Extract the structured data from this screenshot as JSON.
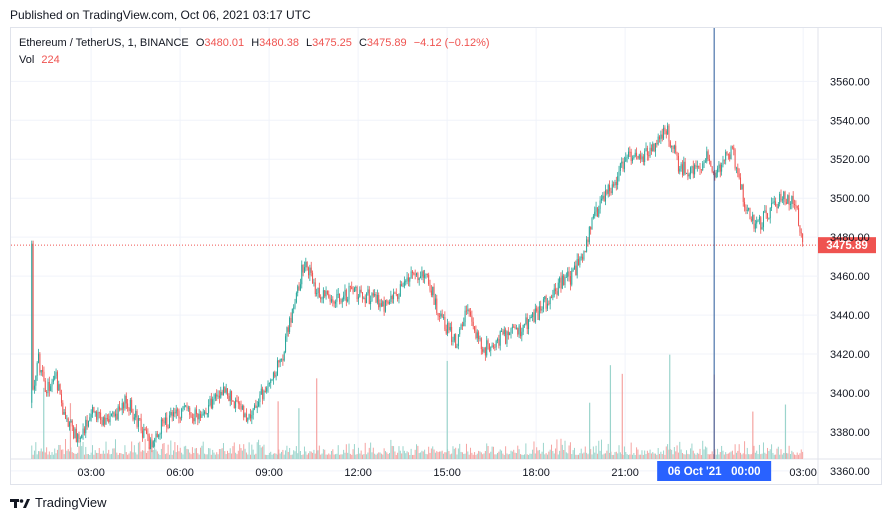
{
  "header": {
    "published": "Published on TradingView.com, Oct 06, 2021 03:17 UTC"
  },
  "legend": {
    "symbol": "Ethereum / TetherUS, 1, BINANCE",
    "o_label": "O",
    "o_value": "3480.01",
    "h_label": "H",
    "h_value": "3480.38",
    "l_label": "L",
    "l_value": "3475.25",
    "c_label": "C",
    "c_value": "3475.89",
    "change": "−4.12 (−0.12%)",
    "vol_label": "Vol",
    "vol_value": "224"
  },
  "price_tag": "3475.89",
  "crosshair_label": "06 Oct '21   00:00",
  "footer": {
    "brand": "TradingView"
  },
  "colors": {
    "up": "#26a69a",
    "down": "#ef5350",
    "up_vol": "#9bd4cc",
    "down_vol": "#f5a3a1",
    "crosshair": "#2a5a9a",
    "price_line": "#ef5350",
    "crosshair_tag": "#2962ff"
  },
  "chart_data": {
    "type": "candlestick",
    "symbol": "ETH/USDT",
    "interval": "1m",
    "y_ticks": [
      3360,
      3380,
      3400,
      3420,
      3440,
      3460,
      3480,
      3500,
      3520,
      3540,
      3560
    ],
    "x_ticks": [
      "03:00",
      "06:00",
      "09:00",
      "12:00",
      "15:00",
      "18:00",
      "21:00",
      "00:00",
      "03:00"
    ],
    "x_tick_hours": [
      3,
      6,
      9,
      12,
      15,
      18,
      21,
      24,
      27
    ],
    "last_price": 3475.89,
    "crosshair_hour": 24,
    "price_path": [
      [
        1.0,
        3395
      ],
      [
        1.2,
        3418
      ],
      [
        1.5,
        3402
      ],
      [
        1.8,
        3410
      ],
      [
        2.1,
        3388
      ],
      [
        2.6,
        3376
      ],
      [
        3.0,
        3392
      ],
      [
        3.6,
        3384
      ],
      [
        4.2,
        3396
      ],
      [
        4.7,
        3382
      ],
      [
        5.0,
        3372
      ],
      [
        5.3,
        3382
      ],
      [
        6.0,
        3391
      ],
      [
        6.6,
        3389
      ],
      [
        7.1,
        3396
      ],
      [
        7.5,
        3403
      ],
      [
        7.9,
        3394
      ],
      [
        8.4,
        3386
      ],
      [
        9.0,
        3408
      ],
      [
        9.4,
        3416
      ],
      [
        9.8,
        3444
      ],
      [
        10.2,
        3468
      ],
      [
        10.6,
        3452
      ],
      [
        11.2,
        3448
      ],
      [
        11.8,
        3452
      ],
      [
        12.5,
        3449
      ],
      [
        13.0,
        3444
      ],
      [
        13.6,
        3458
      ],
      [
        14.3,
        3460
      ],
      [
        14.8,
        3438
      ],
      [
        15.3,
        3426
      ],
      [
        15.7,
        3444
      ],
      [
        16.2,
        3422
      ],
      [
        16.8,
        3428
      ],
      [
        17.4,
        3432
      ],
      [
        18.0,
        3440
      ],
      [
        18.8,
        3456
      ],
      [
        19.2,
        3460
      ],
      [
        19.6,
        3472
      ],
      [
        20.0,
        3492
      ],
      [
        20.5,
        3506
      ],
      [
        21.1,
        3520
      ],
      [
        21.9,
        3524
      ],
      [
        22.4,
        3536
      ],
      [
        22.8,
        3516
      ],
      [
        23.3,
        3514
      ],
      [
        23.8,
        3521
      ],
      [
        24.1,
        3512
      ],
      [
        24.6,
        3526
      ],
      [
        25.0,
        3500
      ],
      [
        25.4,
        3484
      ],
      [
        25.8,
        3493
      ],
      [
        26.3,
        3500
      ],
      [
        26.7,
        3500
      ],
      [
        27.0,
        3476
      ]
    ],
    "volume_spikes": [
      [
        1.4,
        "up"
      ],
      [
        2.3,
        "down"
      ],
      [
        9.3,
        "down"
      ],
      [
        10.0,
        "up"
      ],
      [
        10.6,
        "down"
      ],
      [
        15.0,
        "up"
      ],
      [
        19.8,
        "up"
      ],
      [
        20.5,
        "up"
      ],
      [
        20.9,
        "down"
      ],
      [
        22.5,
        "up"
      ],
      [
        24.0,
        "down"
      ],
      [
        25.3,
        "down"
      ],
      [
        26.4,
        "up"
      ]
    ]
  }
}
